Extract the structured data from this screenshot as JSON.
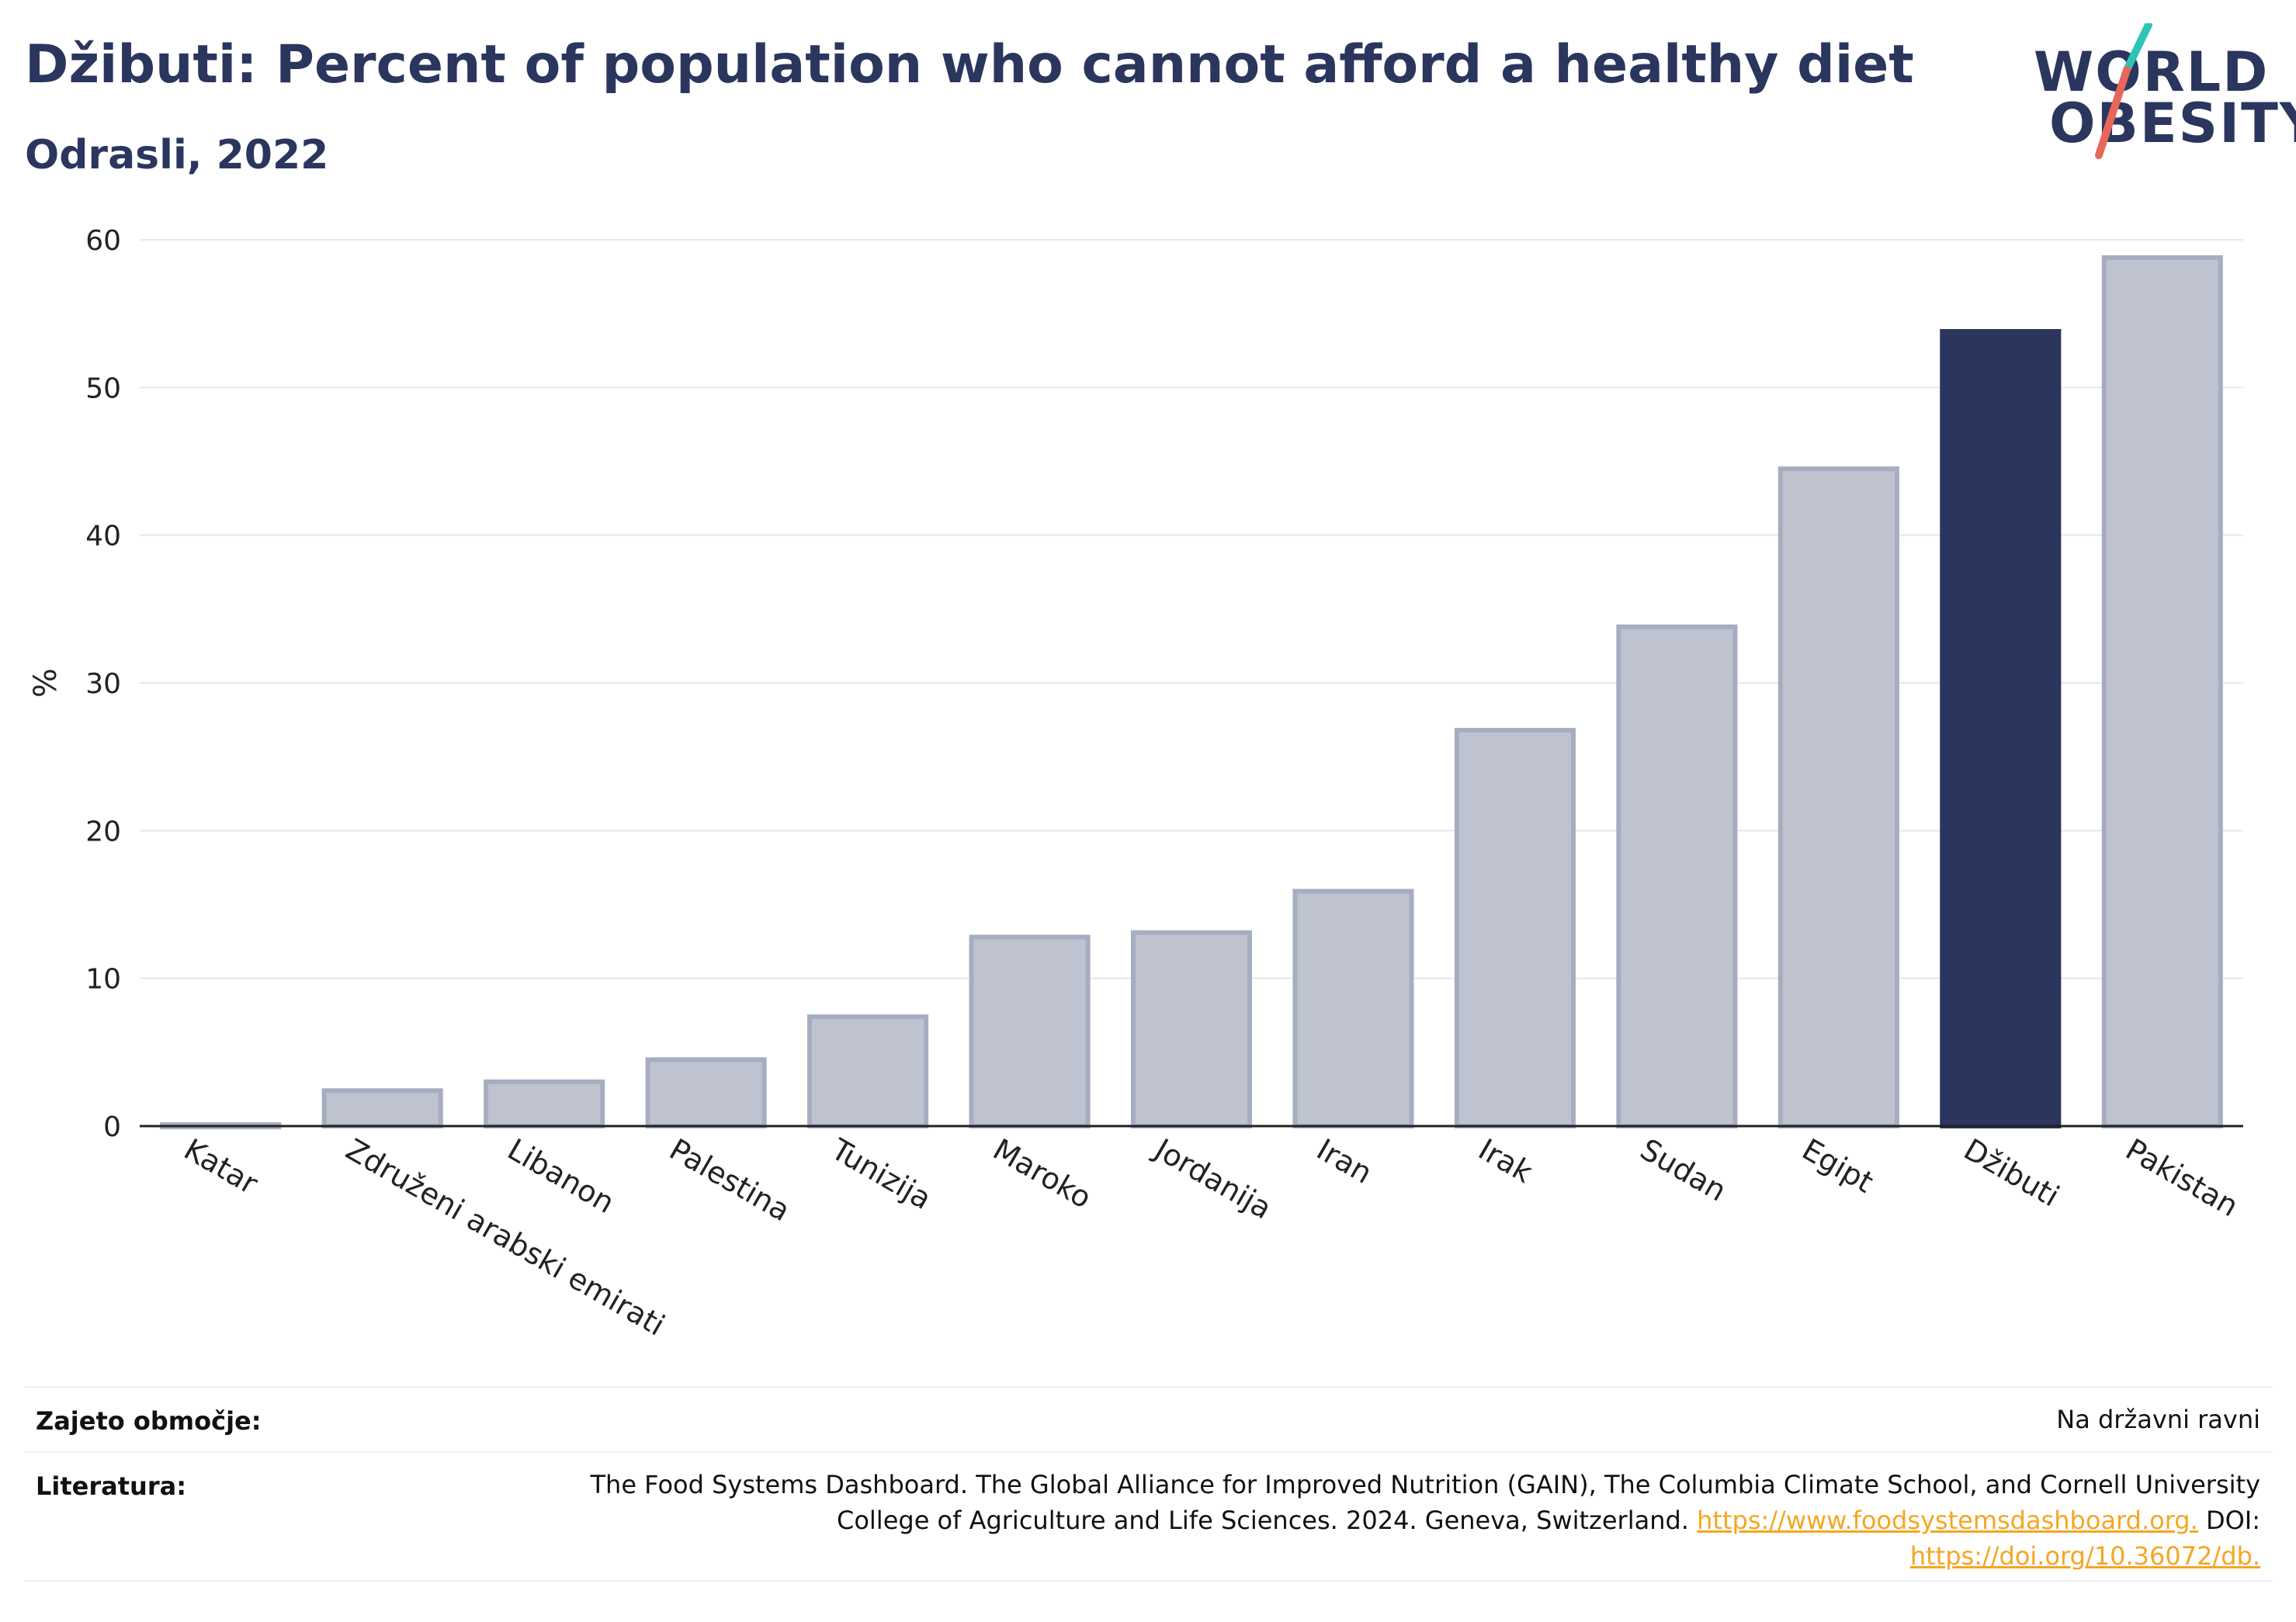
{
  "header": {
    "title": "Džibuti: Percent of population who cannot afford a healthy diet",
    "subtitle": "Odrasli, 2022"
  },
  "logo": {
    "line1": "WORLD",
    "line2": "OBESITY",
    "accent_teal": "#2ec4b6",
    "accent_coral": "#e8665a"
  },
  "colors": {
    "bar": "#bfc3cf",
    "bar_stroke": "#a7adc1",
    "highlight": "#2b365e",
    "grid": "#e6e8ef",
    "axis": "#222222"
  },
  "chart_data": {
    "type": "bar",
    "title": "Džibuti: Percent of population who cannot afford a healthy diet",
    "subtitle": "Odrasli, 2022",
    "xlabel": "",
    "ylabel": "%",
    "ylim": [
      0,
      60
    ],
    "yticks": [
      0,
      10,
      20,
      30,
      40,
      50,
      60
    ],
    "grid": true,
    "highlight": "Džibuti",
    "categories": [
      "Katar",
      "Združeni arabski emirati",
      "Libanon",
      "Palestina",
      "Tunizija",
      "Maroko",
      "Jordanija",
      "Iran",
      "Irak",
      "Sudan",
      "Egipt",
      "Džibuti",
      "Pakistan"
    ],
    "values": [
      0.1,
      2.4,
      3.0,
      4.5,
      7.4,
      12.8,
      13.1,
      15.9,
      26.8,
      33.8,
      44.5,
      53.8,
      58.8
    ]
  },
  "footer": {
    "coverage_label": "Zajeto območje:",
    "coverage_value": "Na državni ravni",
    "references_label": "Literatura:",
    "references_text_1": "The Food Systems Dashboard. The Global Alliance for Improved Nutrition (GAIN), The Columbia Climate School, and Cornell University College of Agriculture and Life Sciences. 2024. Geneva, Switzerland. ",
    "references_link_1": "https://www.foodsystemsdashboard.org.",
    "references_text_2": " DOI: ",
    "references_link_2": "https://doi.org/10.36072/db."
  }
}
